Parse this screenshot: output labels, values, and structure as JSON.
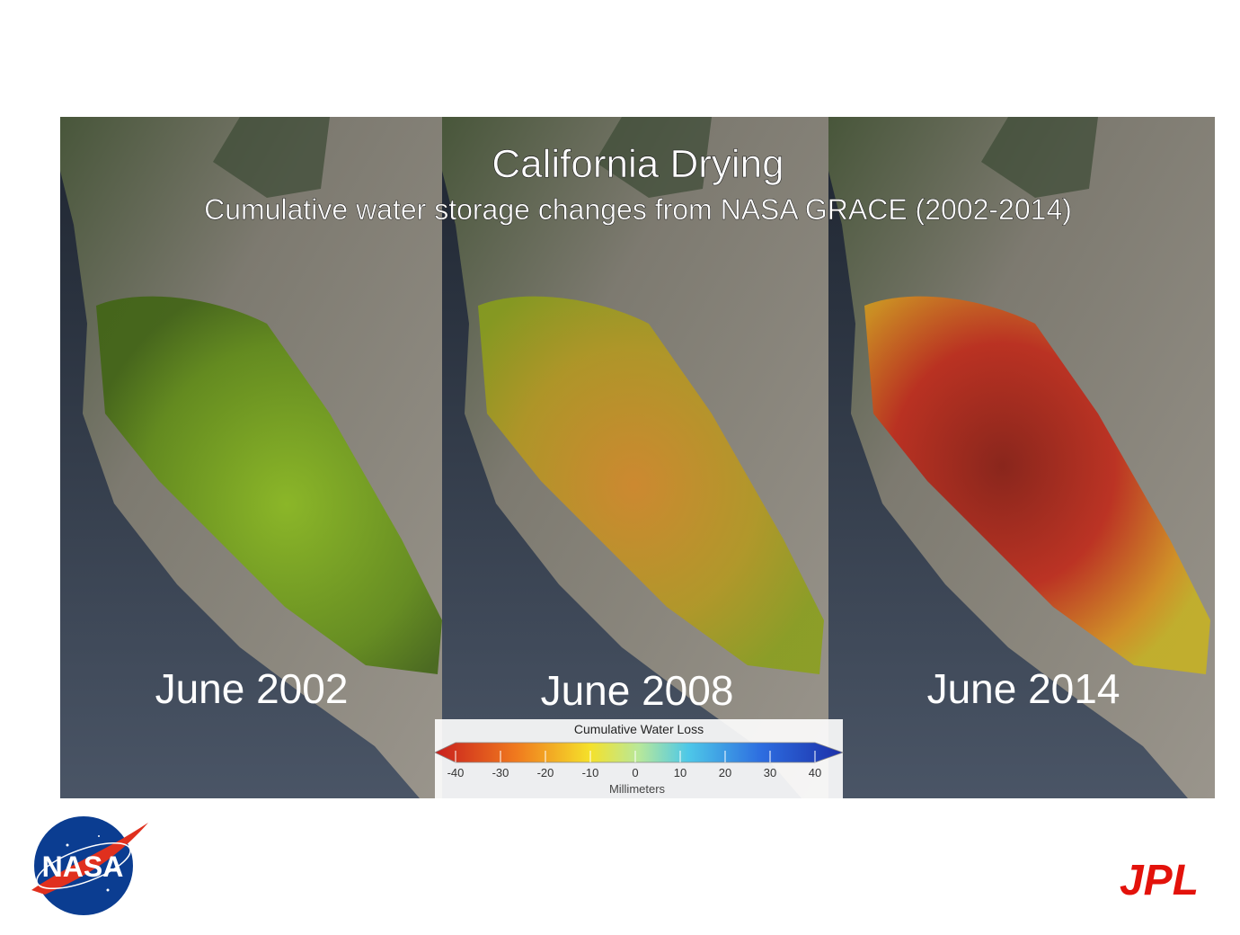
{
  "title": "California Drying",
  "subtitle": "Cumulative water storage changes from NASA GRACE (2002-2014)",
  "panels": [
    {
      "label": "June 2002"
    },
    {
      "label": "June 2008"
    },
    {
      "label": "June 2014"
    }
  ],
  "colorbar": {
    "title": "Cumulative Water Loss",
    "unit": "Millimeters",
    "lim": [
      -40,
      40
    ],
    "ticks": [
      -40,
      -30,
      -20,
      -10,
      0,
      10,
      20,
      30,
      40
    ]
  },
  "logos": {
    "left": "NASA",
    "right": "JPL"
  }
}
